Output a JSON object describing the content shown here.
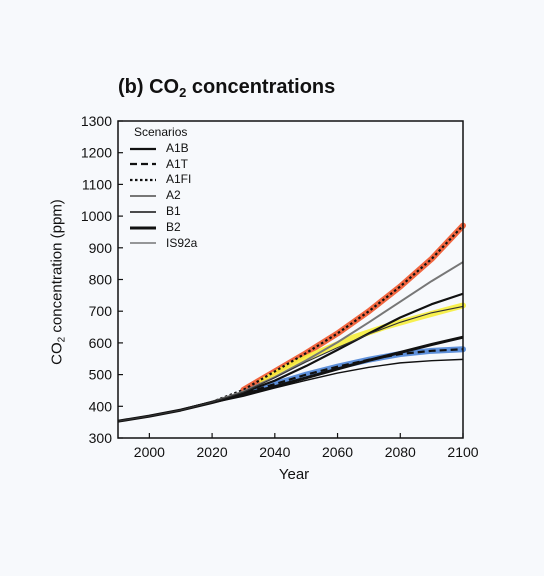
{
  "chart_data": {
    "type": "line",
    "title_main": "(b) CO",
    "title_sub": "2",
    "title_rest": " concentrations",
    "ylabel_main": "CO",
    "ylabel_sub": "2",
    "ylabel_rest": " concentration (ppm)",
    "xlabel": "Year",
    "legend_title": "Scenarios",
    "xlim": [
      1990,
      2100
    ],
    "ylim": [
      300,
      1300
    ],
    "xticks": [
      2000,
      2020,
      2040,
      2060,
      2080,
      2100
    ],
    "yticks": [
      300,
      400,
      500,
      600,
      700,
      800,
      900,
      1000,
      1100,
      1200,
      1300
    ],
    "series": [
      {
        "name": "A1B",
        "style": "solid-thick",
        "color": "#111111",
        "x": [
          1990,
          2000,
          2010,
          2020,
          2030,
          2040,
          2050,
          2060,
          2070,
          2080,
          2090,
          2100
        ],
        "y": [
          353,
          369,
          388,
          414,
          444,
          481,
          527,
          578,
          630,
          680,
          722,
          755
        ]
      },
      {
        "name": "A1T",
        "style": "dashed",
        "color": "#111111",
        "x": [
          1990,
          2000,
          2010,
          2020,
          2030,
          2040,
          2050,
          2060,
          2070,
          2080,
          2090,
          2100
        ],
        "y": [
          353,
          369,
          388,
          414,
          440,
          470,
          500,
          525,
          547,
          565,
          575,
          580
        ]
      },
      {
        "name": "A1FI",
        "style": "dotted",
        "color": "#111111",
        "x": [
          1990,
          2000,
          2010,
          2020,
          2030,
          2040,
          2050,
          2060,
          2070,
          2080,
          2090,
          2100
        ],
        "y": [
          353,
          369,
          388,
          414,
          452,
          510,
          568,
          630,
          700,
          778,
          865,
          970
        ]
      },
      {
        "name": "A2",
        "style": "solid-gray",
        "color": "#777777",
        "x": [
          1990,
          2000,
          2010,
          2020,
          2030,
          2040,
          2050,
          2060,
          2070,
          2080,
          2090,
          2100
        ],
        "y": [
          353,
          369,
          388,
          414,
          447,
          492,
          545,
          602,
          665,
          730,
          795,
          855
        ]
      },
      {
        "name": "B1",
        "style": "solid-thin",
        "color": "#111111",
        "x": [
          1990,
          2000,
          2010,
          2020,
          2030,
          2040,
          2050,
          2060,
          2070,
          2080,
          2090,
          2100
        ],
        "y": [
          353,
          369,
          388,
          411,
          432,
          458,
          482,
          505,
          523,
          537,
          544,
          548
        ]
      },
      {
        "name": "B2",
        "style": "solid-bold",
        "color": "#111111",
        "x": [
          1990,
          2000,
          2010,
          2020,
          2030,
          2040,
          2050,
          2060,
          2070,
          2080,
          2090,
          2100
        ],
        "y": [
          353,
          369,
          388,
          412,
          438,
          462,
          490,
          518,
          545,
          570,
          595,
          618
        ]
      },
      {
        "name": "IS92a",
        "style": "solid-hair",
        "color": "#333333",
        "x": [
          1990,
          2000,
          2010,
          2020,
          2030,
          2040,
          2050,
          2060,
          2070,
          2080,
          2090,
          2100
        ],
        "y": [
          353,
          369,
          388,
          413,
          445,
          490,
          540,
          585,
          628,
          665,
          695,
          715
        ]
      }
    ],
    "highlights": [
      {
        "color": "#f0552b",
        "x": [
          2030,
          2040,
          2050,
          2060,
          2070,
          2080,
          2090,
          2100
        ],
        "y": [
          452,
          510,
          568,
          630,
          700,
          778,
          865,
          970
        ]
      },
      {
        "color": "#f6ee3c",
        "x": [
          2036,
          2045,
          2055,
          2065,
          2075,
          2085,
          2095,
          2100
        ],
        "y": [
          480,
          530,
          575,
          617,
          650,
          678,
          705,
          718
        ]
      },
      {
        "color": "#4d84d6",
        "x": [
          2032,
          2040,
          2050,
          2060,
          2070,
          2080,
          2090,
          2100
        ],
        "y": [
          448,
          470,
          500,
          525,
          547,
          565,
          575,
          580
        ]
      }
    ]
  }
}
